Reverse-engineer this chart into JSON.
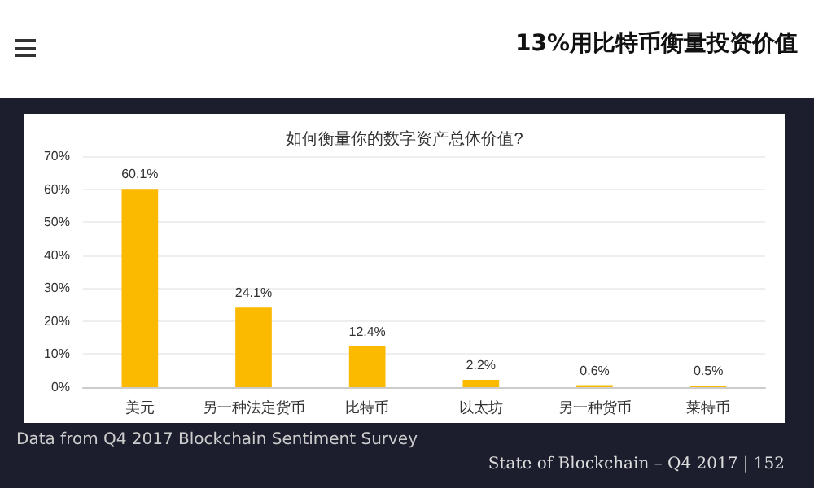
{
  "chart_data": {
    "type": "bar",
    "title": "13%用比特币衡量投资价值",
    "subtitle": "如何衡量你的数字资产总体价值?",
    "categories": [
      "美元",
      "另一种法定货币",
      "比特币",
      "以太坊",
      "另一种货币",
      "莱特币"
    ],
    "values": [
      60.1,
      24.1,
      12.4,
      2.2,
      0.6,
      0.5
    ],
    "value_labels": [
      "60.1%",
      "24.1%",
      "12.4%",
      "2.2%",
      "0.6%",
      "0.5%"
    ],
    "color": "#fbb900",
    "ylim": [
      0,
      70
    ],
    "yticks": [
      {
        "value": 0,
        "label": "0%"
      },
      {
        "value": 10,
        "label": "10%"
      },
      {
        "value": 20,
        "label": "20%"
      },
      {
        "value": 30,
        "label": "30%"
      },
      {
        "value": 40,
        "label": "40%"
      },
      {
        "value": 50,
        "label": "50%"
      },
      {
        "value": 60,
        "label": "60%"
      },
      {
        "value": 70,
        "label": "70%"
      }
    ],
    "grid": "y",
    "annotations": [
      "Data from Q4 2017 Blockchain Sentiment Survey",
      "State of Blockchain – Q4 2017  |  152"
    ]
  }
}
